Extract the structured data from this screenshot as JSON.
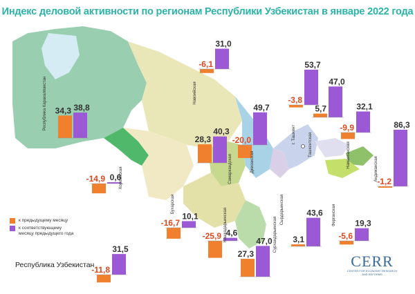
{
  "title": "Индекс деловой активности по регионам Республики Узбекистан в январе 2022 года",
  "legend": {
    "prev_month": "к предыдущему месяцу",
    "prev_year": "к соответствующему месяцу предыдущего года"
  },
  "country_label": "Республика Узбекистан",
  "logo": {
    "text": "CERR",
    "subtitle": "CENTER FOR ECONOMIC RESEARCH AND REFORMS"
  },
  "colors": {
    "prev_month": "#f07f2e",
    "prev_year": "#9b59d6",
    "title": "#2bb3a8"
  },
  "chart_data": {
    "type": "bar",
    "series": [
      {
        "name": "к предыдущему месяцу",
        "key": "m"
      },
      {
        "name": "к соответствующему месяцу предыдущего года",
        "key": "y"
      }
    ],
    "regions": [
      {
        "name": "Республика Каракалпакстан",
        "m": "34,3",
        "y": "38,8",
        "mv": 34.3,
        "yv": 38.8
      },
      {
        "name": "Хорезмская",
        "m": "-14,9",
        "y": "0,6",
        "mv": -14.9,
        "yv": 0.6
      },
      {
        "name": "Навоийская",
        "m": "-6,1",
        "y": "31,0",
        "mv": -6.1,
        "yv": 31.0
      },
      {
        "name": "Бухарская",
        "m": "-16,7",
        "y": "10,1",
        "mv": -16.7,
        "yv": 10.1
      },
      {
        "name": "Самаркандская",
        "m": "28,3",
        "y": "40,3",
        "mv": 28.3,
        "yv": 40.3
      },
      {
        "name": "Кашкадарьинская",
        "m": "-25,9",
        "y": "4,6",
        "mv": -25.9,
        "yv": 4.6
      },
      {
        "name": "Джизакская",
        "m": "-20,0",
        "y": "49,7",
        "mv": -20.0,
        "yv": 49.7
      },
      {
        "name": "Сурхандарьинская",
        "m": "27,3",
        "y": "47,0",
        "mv": 27.3,
        "yv": 47.0
      },
      {
        "name": "Сырдарьинская",
        "m": "3,1",
        "y": "43,6",
        "mv": 3.1,
        "yv": 43.6
      },
      {
        "name": "г. Ташкент",
        "m": "-3,8",
        "y": "53,7",
        "mv": -3.8,
        "yv": 53.7
      },
      {
        "name": "Ташкентская",
        "m": "5,7",
        "y": "47,0",
        "mv": 5.7,
        "yv": 47.0
      },
      {
        "name": "Наманганская",
        "m": "-9,9",
        "y": "32,1",
        "mv": -9.9,
        "yv": 32.1
      },
      {
        "name": "Андижанская",
        "m": "-1,2",
        "y": "86,3",
        "mv": -1.2,
        "yv": 86.3
      },
      {
        "name": "Ферганская",
        "m": "-5,6",
        "y": "19,3",
        "mv": -5.6,
        "yv": 19.3
      },
      {
        "name": "Республика Узбекистан",
        "m": "-11,8",
        "y": "31,5",
        "mv": -11.8,
        "yv": 31.5
      }
    ]
  }
}
